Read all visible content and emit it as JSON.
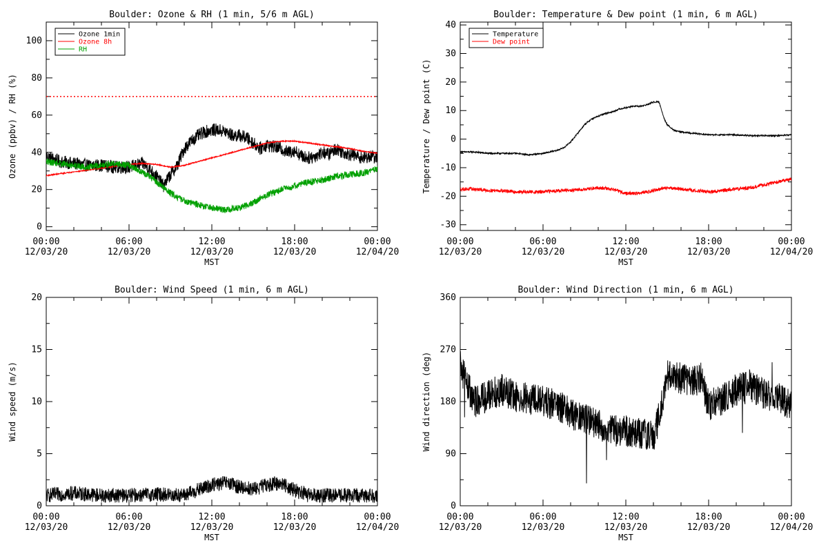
{
  "chart_data": [
    {
      "type": "line",
      "title": "Boulder: Ozone & RH (1 min, 5/6 m AGL)",
      "xlabel": "MST",
      "ylabel": "Ozone (ppbv) / RH (%)",
      "xlim": [
        0,
        24
      ],
      "ylim": [
        -2,
        110
      ],
      "yticks": [
        0,
        20,
        40,
        60,
        80,
        100
      ],
      "xticks": [
        {
          "x": 0,
          "time": "00:00",
          "date": "12/03/20"
        },
        {
          "x": 6,
          "time": "06:00",
          "date": "12/03/20"
        },
        {
          "x": 12,
          "time": "12:00",
          "date": "12/03/20"
        },
        {
          "x": 18,
          "time": "18:00",
          "date": "12/03/20"
        },
        {
          "x": 24,
          "time": "00:00",
          "date": "12/04/20"
        }
      ],
      "reference_line": {
        "y": 70,
        "style": "dotted",
        "color": "#ff0000"
      },
      "legend": "top-left",
      "series": [
        {
          "name": "Ozone 1min",
          "color": "#000000",
          "noise": 3.5,
          "x": [
            0,
            1,
            2,
            3,
            4,
            5,
            6,
            7,
            7.5,
            8,
            8.5,
            9,
            9.5,
            10,
            10.5,
            11,
            11.5,
            12,
            12.5,
            13,
            13.5,
            14,
            14.5,
            15,
            15.5,
            16,
            16.5,
            17,
            17.5,
            18,
            18.5,
            19,
            19.5,
            20,
            20.5,
            21,
            21.5,
            22,
            22.5,
            23,
            23.5,
            24
          ],
          "y": [
            38,
            35,
            34,
            33,
            33,
            32,
            32,
            34,
            31,
            27,
            22,
            28,
            33,
            42,
            46,
            49,
            51,
            52,
            52,
            51,
            49,
            49,
            48,
            45,
            42,
            44,
            43,
            42,
            40,
            41,
            38,
            37,
            38,
            40,
            39,
            42,
            40,
            39,
            38,
            37,
            38,
            37
          ]
        },
        {
          "name": "Ozone 8h",
          "color": "#ff0000",
          "noise": 0.3,
          "x": [
            0,
            1,
            2,
            3,
            4,
            5,
            6,
            7,
            8,
            9,
            10,
            11,
            12,
            13,
            14,
            15,
            16,
            17,
            18,
            19,
            20,
            21,
            22,
            23,
            24
          ],
          "y": [
            27.5,
            28.5,
            29.5,
            30.5,
            31.5,
            32.5,
            33.5,
            34,
            33.5,
            32,
            33,
            35,
            37,
            39,
            41,
            43,
            45,
            46,
            46,
            45,
            44,
            43,
            42,
            40.5,
            39.5
          ]
        },
        {
          "name": "RH",
          "color": "#00a000",
          "noise": 1.8,
          "x": [
            0,
            1,
            2,
            3,
            4,
            5,
            6,
            6.5,
            7,
            7.5,
            8,
            8.5,
            9,
            9.5,
            10,
            11,
            12,
            13,
            14,
            15,
            16,
            17,
            18,
            19,
            20,
            21,
            22,
            23,
            23.5,
            24
          ],
          "y": [
            35,
            34,
            33,
            32,
            33,
            34,
            33,
            31,
            29,
            27,
            24,
            21,
            18,
            16,
            14,
            12,
            10,
            9,
            10,
            13,
            17,
            20,
            22,
            24,
            25,
            27,
            28,
            29,
            30,
            31
          ]
        }
      ]
    },
    {
      "type": "line",
      "title": "Boulder: Temperature & Dew point (1 min, 6 m AGL)",
      "xlabel": "MST",
      "ylabel": "Temperature / Dew point (C)",
      "xlim": [
        0,
        24
      ],
      "ylim": [
        -32,
        41
      ],
      "yticks": [
        -30,
        -20,
        -10,
        0,
        10,
        20,
        30,
        40
      ],
      "xticks": [
        {
          "x": 0,
          "time": "00:00",
          "date": "12/03/20"
        },
        {
          "x": 6,
          "time": "06:00",
          "date": "12/03/20"
        },
        {
          "x": 12,
          "time": "12:00",
          "date": "12/03/20"
        },
        {
          "x": 18,
          "time": "18:00",
          "date": "12/03/20"
        },
        {
          "x": 24,
          "time": "00:00",
          "date": "12/04/20"
        }
      ],
      "legend": "top-left",
      "series": [
        {
          "name": "Temperature",
          "color": "#000000",
          "noise": 0.25,
          "x": [
            0,
            1,
            2,
            3,
            4,
            5,
            6,
            7,
            7.5,
            8,
            8.5,
            9,
            9.5,
            10,
            10.5,
            11,
            11.5,
            12,
            12.5,
            13,
            13.5,
            14,
            14.4,
            14.6,
            14.8,
            15,
            15.5,
            16,
            17,
            18,
            19,
            20,
            21,
            22,
            23,
            24
          ],
          "y": [
            -4.5,
            -4.5,
            -5,
            -5,
            -5,
            -5.5,
            -5,
            -4,
            -3,
            -1,
            2,
            5,
            7,
            8,
            9,
            9.5,
            10.5,
            11,
            11.5,
            11.5,
            12,
            13,
            13,
            10,
            7,
            5,
            3,
            2.5,
            2,
            1.5,
            1.5,
            1.5,
            1.2,
            1.2,
            1.2,
            1.5
          ]
        },
        {
          "name": "Dew point",
          "color": "#ff0000",
          "noise": 0.6,
          "x": [
            0,
            1,
            2,
            3,
            4,
            5,
            6,
            7,
            8,
            9,
            10,
            11,
            12,
            13,
            14,
            15,
            16,
            17,
            18,
            19,
            20,
            21,
            22,
            23,
            24
          ],
          "y": [
            -17.5,
            -17.5,
            -18,
            -18,
            -18.5,
            -18.5,
            -18.5,
            -18,
            -18,
            -17.5,
            -17,
            -17.5,
            -19,
            -19,
            -18,
            -17,
            -17.5,
            -18,
            -18.5,
            -18,
            -17.5,
            -17,
            -16,
            -15,
            -14
          ]
        }
      ]
    },
    {
      "type": "line",
      "title": "Boulder: Wind Speed (1 min, 6 m AGL)",
      "xlabel": "MST",
      "ylabel": "Wind speed (m/s)",
      "xlim": [
        0,
        24
      ],
      "ylim": [
        0,
        20
      ],
      "yticks": [
        0,
        5,
        10,
        15,
        20
      ],
      "xticks": [
        {
          "x": 0,
          "time": "00:00",
          "date": "12/03/20"
        },
        {
          "x": 6,
          "time": "06:00",
          "date": "12/03/20"
        },
        {
          "x": 12,
          "time": "12:00",
          "date": "12/03/20"
        },
        {
          "x": 18,
          "time": "18:00",
          "date": "12/03/20"
        },
        {
          "x": 24,
          "time": "00:00",
          "date": "12/04/20"
        }
      ],
      "series": [
        {
          "color": "#000000",
          "noise": 0.7,
          "x": [
            0,
            2,
            4,
            6,
            8,
            10,
            11,
            12,
            13,
            14,
            15,
            16,
            17,
            18,
            19,
            20,
            21,
            22,
            23,
            24
          ],
          "y": [
            1,
            1.2,
            1,
            1,
            1.1,
            1,
            1.5,
            2,
            2.2,
            1.8,
            1.6,
            2,
            2.2,
            1.5,
            1,
            1,
            1,
            1,
            1,
            1
          ]
        }
      ]
    },
    {
      "type": "line",
      "title": "Boulder: Wind Direction (1 min, 6 m AGL)",
      "xlabel": "MST",
      "ylabel": "Wind direction (deg)",
      "xlim": [
        0,
        24
      ],
      "ylim": [
        0,
        360
      ],
      "yticks": [
        0,
        90,
        180,
        270,
        360
      ],
      "xticks": [
        {
          "x": 0,
          "time": "00:00",
          "date": "12/03/20"
        },
        {
          "x": 6,
          "time": "06:00",
          "date": "12/03/20"
        },
        {
          "x": 12,
          "time": "12:00",
          "date": "12/03/20"
        },
        {
          "x": 18,
          "time": "18:00",
          "date": "12/03/20"
        },
        {
          "x": 24,
          "time": "00:00",
          "date": "12/04/20"
        }
      ],
      "series": [
        {
          "color": "#000000",
          "noise": 28,
          "x": [
            0,
            0.5,
            1,
            2,
            3,
            4,
            5,
            6,
            7,
            8,
            9,
            10,
            11,
            12,
            13,
            14,
            14.5,
            15,
            16,
            17,
            17.5,
            18,
            18.5,
            19,
            20,
            21,
            22,
            23,
            24
          ],
          "y": [
            240,
            210,
            180,
            190,
            200,
            190,
            185,
            180,
            175,
            160,
            150,
            140,
            130,
            130,
            125,
            120,
            160,
            225,
            220,
            215,
            225,
            170,
            180,
            185,
            200,
            205,
            195,
            185,
            175
          ]
        }
      ]
    }
  ]
}
